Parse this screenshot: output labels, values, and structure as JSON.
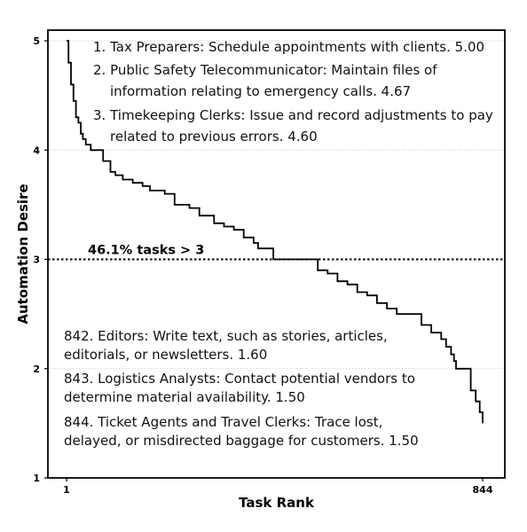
{
  "chart_data": {
    "type": "line",
    "xlabel": "Task Rank",
    "ylabel": "Automation Desire",
    "xlim": [
      1,
      844
    ],
    "ylim": [
      1,
      5
    ],
    "x_ticks": [
      "1",
      "844"
    ],
    "y_ticks": [
      "1",
      "2",
      "3",
      "4",
      "5"
    ],
    "grid": "horizontal dotted at y = 2, 4, 5",
    "reference_line": {
      "y": 3,
      "style": "dotted",
      "label": "46.1% tasks > 3"
    },
    "series": [
      {
        "x": [
          1,
          5,
          10,
          15,
          20,
          25,
          30,
          34,
          40,
          50,
          60,
          64,
          75,
          90,
          100,
          115,
          135,
          155,
          170,
          200,
          220,
          250,
          270,
          300,
          320,
          340,
          360,
          380,
          389,
          420,
          455,
          470,
          490,
          510,
          530,
          550,
          570,
          590,
          610,
          630,
          650,
          670,
          690,
          700,
          720,
          740,
          760,
          770,
          780,
          786,
          790,
          800,
          810,
          820,
          830,
          838,
          844
        ],
        "y": [
          5.0,
          4.8,
          4.6,
          4.45,
          4.3,
          4.25,
          4.15,
          4.1,
          4.05,
          4.0,
          4.0,
          4.0,
          3.9,
          3.8,
          3.77,
          3.73,
          3.7,
          3.67,
          3.63,
          3.6,
          3.5,
          3.47,
          3.4,
          3.33,
          3.3,
          3.27,
          3.2,
          3.15,
          3.1,
          3.0,
          3.0,
          3.0,
          3.0,
          2.9,
          2.87,
          2.8,
          2.77,
          2.7,
          2.67,
          2.6,
          2.55,
          2.5,
          2.5,
          2.5,
          2.4,
          2.33,
          2.27,
          2.2,
          2.13,
          2.07,
          2.0,
          2.0,
          2.0,
          1.8,
          1.7,
          1.6,
          1.5
        ]
      }
    ],
    "annotations": {
      "top": [
        "1. Tax Preparers: Schedule appointments with clients. 5.00",
        "2. Public Safety Telecommunicator: Maintain files of",
        "information relating to emergency calls. 4.67",
        "3. Timekeeping Clerks: Issue and record adjustments to pay",
        "related to previous errors. 4.60"
      ],
      "bottom": [
        "842. Editors: Write text, such as stories, articles,",
        "editorials, or newsletters. 1.60",
        "843. Logistics Analysts: Contact potential vendors to",
        "determine material availability. 1.50",
        "844. Ticket Agents and Travel Clerks: Trace lost,",
        "delayed, or misdirected baggage for customers. 1.50"
      ]
    }
  }
}
